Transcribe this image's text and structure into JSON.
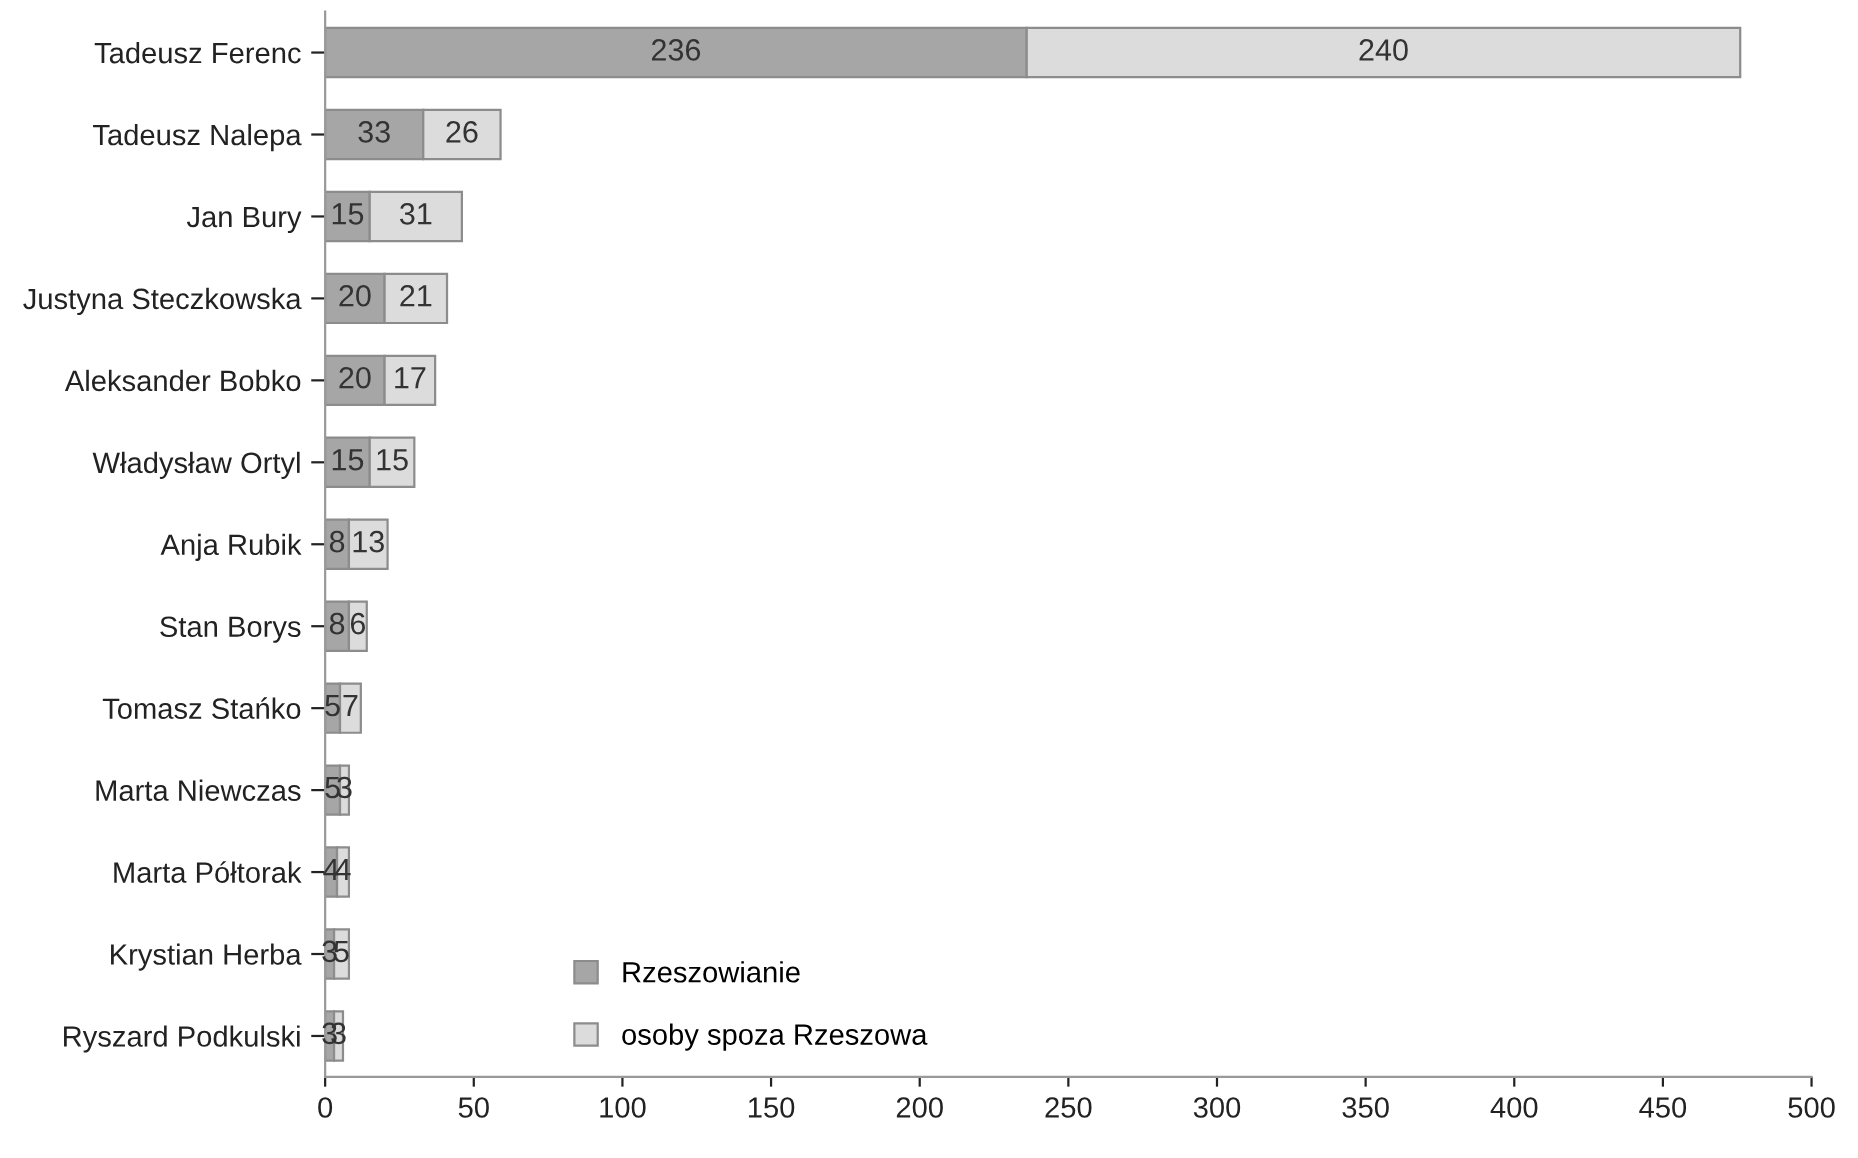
{
  "chart_data": {
    "type": "bar",
    "orientation": "horizontal",
    "stacked": true,
    "categories": [
      "Tadeusz Ferenc",
      "Tadeusz Nalepa",
      "Jan Bury",
      "Justyna Steczkowska",
      "Aleksander Bobko",
      "Władysław Ortyl",
      "Anja Rubik",
      "Stan Borys",
      "Tomasz Stańko",
      "Marta Niewczas",
      "Marta Półtorak",
      "Krystian Herba",
      "Ryszard Podkulski"
    ],
    "series": [
      {
        "name": "Rzeszowianie",
        "color": "#a6a6a6",
        "values": [
          236,
          33,
          15,
          20,
          20,
          15,
          8,
          8,
          5,
          5,
          4,
          3,
          3
        ]
      },
      {
        "name": "osoby spoza Rzeszowa",
        "color": "#dcdcdc",
        "values": [
          240,
          26,
          31,
          21,
          17,
          15,
          13,
          6,
          7,
          3,
          4,
          5,
          3
        ]
      }
    ],
    "data_labels": true,
    "xlim": [
      0,
      500
    ],
    "xticks": [
      0,
      50,
      100,
      150,
      200,
      250,
      300,
      350,
      400,
      450,
      500
    ],
    "grid": false,
    "legend": "bottom left"
  }
}
